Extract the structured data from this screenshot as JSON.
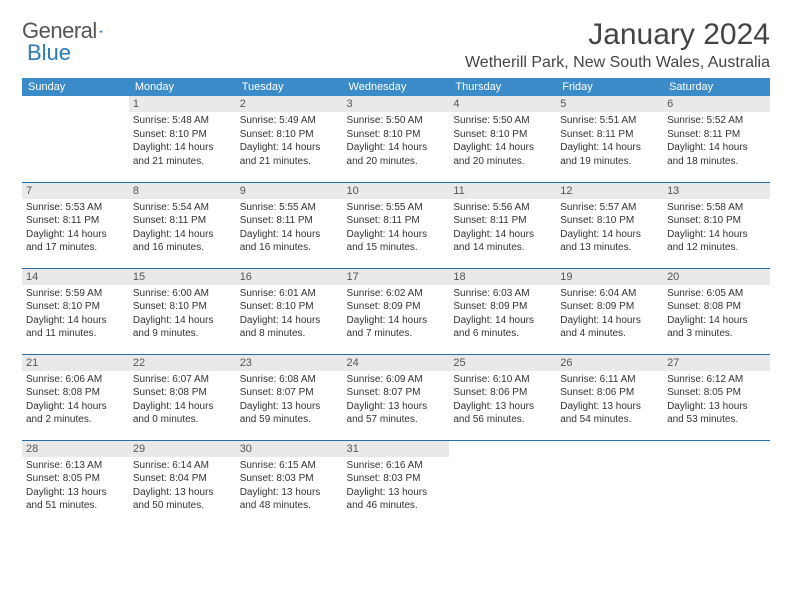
{
  "brand": {
    "word1": "General",
    "word2": "Blue"
  },
  "title": "January 2024",
  "location": "Wetherill Park, New South Wales, Australia",
  "colors": {
    "header_bg": "#3b8bc8",
    "header_text": "#ffffff",
    "daynum_bg": "#e9e9e9",
    "row_divider": "#2a6ea8",
    "brand_gray": "#555555",
    "brand_blue": "#2a7ab9"
  },
  "weekdays": [
    "Sunday",
    "Monday",
    "Tuesday",
    "Wednesday",
    "Thursday",
    "Friday",
    "Saturday"
  ],
  "weeks": [
    [
      {
        "n": "",
        "sr": "",
        "ss": "",
        "dl": ""
      },
      {
        "n": "1",
        "sr": "5:48 AM",
        "ss": "8:10 PM",
        "dl": "14 hours and 21 minutes."
      },
      {
        "n": "2",
        "sr": "5:49 AM",
        "ss": "8:10 PM",
        "dl": "14 hours and 21 minutes."
      },
      {
        "n": "3",
        "sr": "5:50 AM",
        "ss": "8:10 PM",
        "dl": "14 hours and 20 minutes."
      },
      {
        "n": "4",
        "sr": "5:50 AM",
        "ss": "8:10 PM",
        "dl": "14 hours and 20 minutes."
      },
      {
        "n": "5",
        "sr": "5:51 AM",
        "ss": "8:11 PM",
        "dl": "14 hours and 19 minutes."
      },
      {
        "n": "6",
        "sr": "5:52 AM",
        "ss": "8:11 PM",
        "dl": "14 hours and 18 minutes."
      }
    ],
    [
      {
        "n": "7",
        "sr": "5:53 AM",
        "ss": "8:11 PM",
        "dl": "14 hours and 17 minutes."
      },
      {
        "n": "8",
        "sr": "5:54 AM",
        "ss": "8:11 PM",
        "dl": "14 hours and 16 minutes."
      },
      {
        "n": "9",
        "sr": "5:55 AM",
        "ss": "8:11 PM",
        "dl": "14 hours and 16 minutes."
      },
      {
        "n": "10",
        "sr": "5:55 AM",
        "ss": "8:11 PM",
        "dl": "14 hours and 15 minutes."
      },
      {
        "n": "11",
        "sr": "5:56 AM",
        "ss": "8:11 PM",
        "dl": "14 hours and 14 minutes."
      },
      {
        "n": "12",
        "sr": "5:57 AM",
        "ss": "8:10 PM",
        "dl": "14 hours and 13 minutes."
      },
      {
        "n": "13",
        "sr": "5:58 AM",
        "ss": "8:10 PM",
        "dl": "14 hours and 12 minutes."
      }
    ],
    [
      {
        "n": "14",
        "sr": "5:59 AM",
        "ss": "8:10 PM",
        "dl": "14 hours and 11 minutes."
      },
      {
        "n": "15",
        "sr": "6:00 AM",
        "ss": "8:10 PM",
        "dl": "14 hours and 9 minutes."
      },
      {
        "n": "16",
        "sr": "6:01 AM",
        "ss": "8:10 PM",
        "dl": "14 hours and 8 minutes."
      },
      {
        "n": "17",
        "sr": "6:02 AM",
        "ss": "8:09 PM",
        "dl": "14 hours and 7 minutes."
      },
      {
        "n": "18",
        "sr": "6:03 AM",
        "ss": "8:09 PM",
        "dl": "14 hours and 6 minutes."
      },
      {
        "n": "19",
        "sr": "6:04 AM",
        "ss": "8:09 PM",
        "dl": "14 hours and 4 minutes."
      },
      {
        "n": "20",
        "sr": "6:05 AM",
        "ss": "8:08 PM",
        "dl": "14 hours and 3 minutes."
      }
    ],
    [
      {
        "n": "21",
        "sr": "6:06 AM",
        "ss": "8:08 PM",
        "dl": "14 hours and 2 minutes."
      },
      {
        "n": "22",
        "sr": "6:07 AM",
        "ss": "8:08 PM",
        "dl": "14 hours and 0 minutes."
      },
      {
        "n": "23",
        "sr": "6:08 AM",
        "ss": "8:07 PM",
        "dl": "13 hours and 59 minutes."
      },
      {
        "n": "24",
        "sr": "6:09 AM",
        "ss": "8:07 PM",
        "dl": "13 hours and 57 minutes."
      },
      {
        "n": "25",
        "sr": "6:10 AM",
        "ss": "8:06 PM",
        "dl": "13 hours and 56 minutes."
      },
      {
        "n": "26",
        "sr": "6:11 AM",
        "ss": "8:06 PM",
        "dl": "13 hours and 54 minutes."
      },
      {
        "n": "27",
        "sr": "6:12 AM",
        "ss": "8:05 PM",
        "dl": "13 hours and 53 minutes."
      }
    ],
    [
      {
        "n": "28",
        "sr": "6:13 AM",
        "ss": "8:05 PM",
        "dl": "13 hours and 51 minutes."
      },
      {
        "n": "29",
        "sr": "6:14 AM",
        "ss": "8:04 PM",
        "dl": "13 hours and 50 minutes."
      },
      {
        "n": "30",
        "sr": "6:15 AM",
        "ss": "8:03 PM",
        "dl": "13 hours and 48 minutes."
      },
      {
        "n": "31",
        "sr": "6:16 AM",
        "ss": "8:03 PM",
        "dl": "13 hours and 46 minutes."
      },
      {
        "n": "",
        "sr": "",
        "ss": "",
        "dl": ""
      },
      {
        "n": "",
        "sr": "",
        "ss": "",
        "dl": ""
      },
      {
        "n": "",
        "sr": "",
        "ss": "",
        "dl": ""
      }
    ]
  ],
  "labels": {
    "sunrise": "Sunrise:",
    "sunset": "Sunset:",
    "daylight": "Daylight:"
  }
}
